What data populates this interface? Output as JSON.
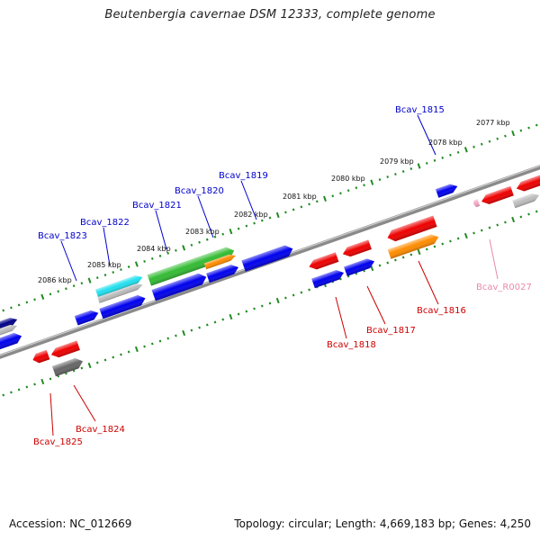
{
  "title": "Beutenbergia cavernae DSM 12333, complete genome",
  "footer": {
    "accession": "Accession: NC_012669",
    "topology": "Topology: circular; Length: 4,669,183 bp; Genes: 4,250"
  },
  "colors": {
    "forward_label": "#0000cc",
    "reverse_label": "#cc0000",
    "rna_label": "#e88aae",
    "ruler": "#228b22",
    "backbone": "#888888"
  },
  "ruler_ticks": [
    "2077 kbp",
    "2078 kbp",
    "2079 kbp",
    "2080 kbp",
    "2081 kbp",
    "2082 kbp",
    "2083 kbp",
    "2084 kbp",
    "2085 kbp",
    "2086 kbp"
  ],
  "gene_labels": [
    {
      "name": "Bcav_1815",
      "strand": "forward"
    },
    {
      "name": "Bcav_1819",
      "strand": "forward"
    },
    {
      "name": "Bcav_1820",
      "strand": "forward"
    },
    {
      "name": "Bcav_1821",
      "strand": "forward"
    },
    {
      "name": "Bcav_1822",
      "strand": "forward"
    },
    {
      "name": "Bcav_1823",
      "strand": "forward"
    },
    {
      "name": "Bcav_R0027",
      "strand": "rna"
    },
    {
      "name": "Bcav_1816",
      "strand": "reverse"
    },
    {
      "name": "Bcav_1817",
      "strand": "reverse"
    },
    {
      "name": "Bcav_1818",
      "strand": "reverse"
    },
    {
      "name": "Bcav_1824",
      "strand": "reverse"
    },
    {
      "name": "Bcav_1825",
      "strand": "reverse"
    }
  ]
}
